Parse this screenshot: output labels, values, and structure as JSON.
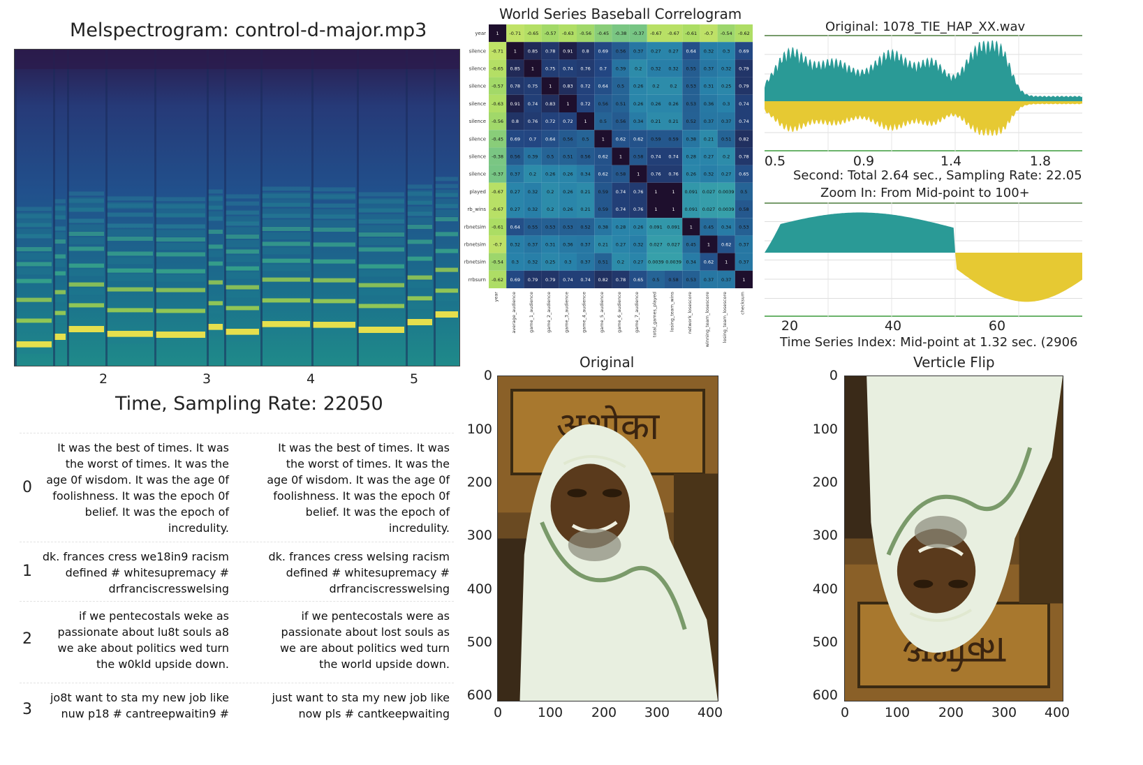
{
  "spectrogram": {
    "title": "Melspectrogram: control-d-major.mp3",
    "xlabel": "Time, Sampling Rate: 22050",
    "xticks": [
      "2",
      "3",
      "4",
      "5"
    ]
  },
  "correlogram": {
    "title": "World Series Baseball Correlogram",
    "row_labels": [
      "year",
      "silence",
      "silence",
      "silence",
      "silence",
      "silence",
      "silence",
      "silence",
      "silence",
      "played",
      "rb_wins",
      "rbnetsim",
      "rbnetsim",
      "rbnetsim",
      "rrbsurn"
    ],
    "col_labels": [
      "year",
      "average_audience",
      "game_1_audience",
      "game_2_audience",
      "game_3_audience",
      "game_4_audience",
      "game_5_audience",
      "game_6_audience",
      "game_7_audience",
      "total_games_played",
      "losing_team_wins",
      "network_losescore",
      "winning_team_losescore",
      "losing_team_losescore",
      "checksum"
    ],
    "matrix": [
      [
        "1",
        "-0.71",
        "-0.65",
        "-0.57",
        "-0.63",
        "-0.56",
        "-0.45",
        "-0.38",
        "-0.37",
        "-0.67",
        "-0.67",
        "-0.61",
        "-0.7",
        "-0.54",
        "-0.62"
      ],
      [
        "-0.71",
        "1",
        "0.85",
        "0.78",
        "0.91",
        "0.8",
        "0.69",
        "0.56",
        "0.37",
        "0.27",
        "0.27",
        "0.64",
        "0.32",
        "0.3",
        "0.69"
      ],
      [
        "-0.65",
        "0.85",
        "1",
        "0.75",
        "0.74",
        "0.76",
        "0.7",
        "0.39",
        "0.2",
        "0.32",
        "0.32",
        "0.55",
        "0.37",
        "0.32",
        "0.79"
      ],
      [
        "-0.57",
        "0.78",
        "0.75",
        "1",
        "0.83",
        "0.72",
        "0.64",
        "0.5",
        "0.26",
        "0.2",
        "0.2",
        "0.53",
        "0.31",
        "0.25",
        "0.79"
      ],
      [
        "-0.63",
        "0.91",
        "0.74",
        "0.83",
        "1",
        "0.72",
        "0.56",
        "0.51",
        "0.26",
        "0.26",
        "0.26",
        "0.53",
        "0.36",
        "0.3",
        "0.74"
      ],
      [
        "-0.56",
        "0.8",
        "0.76",
        "0.72",
        "0.72",
        "1",
        "0.5",
        "0.56",
        "0.34",
        "0.21",
        "0.21",
        "0.52",
        "0.37",
        "0.37",
        "0.74"
      ],
      [
        "-0.45",
        "0.69",
        "0.7",
        "0.64",
        "0.56",
        "0.5",
        "1",
        "0.62",
        "0.62",
        "0.59",
        "0.59",
        "0.38",
        "0.21",
        "0.51",
        "0.82"
      ],
      [
        "-0.38",
        "0.56",
        "0.39",
        "0.5",
        "0.51",
        "0.56",
        "0.62",
        "1",
        "0.58",
        "0.74",
        "0.74",
        "0.28",
        "0.27",
        "0.2",
        "0.78"
      ],
      [
        "-0.37",
        "0.37",
        "0.2",
        "0.26",
        "0.26",
        "0.34",
        "0.62",
        "0.58",
        "1",
        "0.76",
        "0.76",
        "0.26",
        "0.32",
        "0.27",
        "0.65"
      ],
      [
        "-0.67",
        "0.27",
        "0.32",
        "0.2",
        "0.26",
        "0.21",
        "0.59",
        "0.74",
        "0.76",
        "1",
        "1",
        "0.091",
        "0.027",
        "0.0039",
        "0.5"
      ],
      [
        "-0.67",
        "0.27",
        "0.32",
        "0.2",
        "0.26",
        "0.21",
        "0.59",
        "0.74",
        "0.76",
        "1",
        "1",
        "0.091",
        "0.027",
        "0.0039",
        "0.58"
      ],
      [
        "-0.61",
        "0.64",
        "0.55",
        "0.53",
        "0.53",
        "0.52",
        "0.38",
        "0.28",
        "0.26",
        "0.091",
        "0.091",
        "1",
        "0.45",
        "0.34",
        "0.53"
      ],
      [
        "-0.7",
        "0.32",
        "0.37",
        "0.31",
        "0.36",
        "0.37",
        "0.21",
        "0.27",
        "0.32",
        "0.027",
        "0.027",
        "0.45",
        "1",
        "0.62",
        "0.37"
      ],
      [
        "-0.54",
        "0.3",
        "0.32",
        "0.25",
        "0.3",
        "0.37",
        "0.51",
        "0.2",
        "0.27",
        "0.0039",
        "0.0039",
        "0.34",
        "0.62",
        "1",
        "0.37"
      ],
      [
        "-0.62",
        "0.69",
        "0.79",
        "0.79",
        "0.74",
        "0.74",
        "0.82",
        "0.78",
        "0.65",
        "0.5",
        "0.58",
        "0.53",
        "0.37",
        "0.37",
        "1"
      ]
    ]
  },
  "wave_original": {
    "title": "Original: 1078_TIE_HAP_XX.wav",
    "xticks": [
      "0.5",
      "0.9",
      "1.4",
      "1.8"
    ],
    "xlabel": "Second: Total 2.64 sec., Sampling Rate: 22.05",
    "colors": {
      "positive": "#2a9a96",
      "negative": "#e6c933"
    }
  },
  "wave_zoom": {
    "title": "Zoom In: From Mid-point to 100+",
    "xticks": [
      "20",
      "40",
      "60"
    ],
    "xlabel": "Time Series Index:  Mid-point at 1.32 sec. (2906"
  },
  "text_table": {
    "rows": [
      {
        "index": "0",
        "noisy": "It was the best of times. It was the worst of times. It was the age 0f wisdom. It was the age 0f foolishness. It was the epoch 0f belief. It was the epoch of incredulity.",
        "clean": "It was the best of times. It was the worst of times. It was the age 0f wisdom. It was the age 0f foolishness. It was the epoch 0f belief. It was the epoch of incredulity."
      },
      {
        "index": "1",
        "noisy": "dk. frances cress we18in9 racism defined # whitesupremacy # drfranciscresswelsing",
        "clean": "dk. frances cress welsing racism defined # whitesupremacy # drfranciscresswelsing"
      },
      {
        "index": "2",
        "noisy": "if we pentecostals weke as passionate about lu8t souls a8 we ake about politics wed turn the w0kld upside down.",
        "clean": "if we pentecostals were as passionate about lost souls as we are about politics wed turn the world upside down."
      },
      {
        "index": "3",
        "noisy": "jo8t want to sta my new job like nuw p18 # cantreepwaitin9 #",
        "clean": "just want to sta my new job like now pls # cantkeepwaiting"
      }
    ]
  },
  "image_original": {
    "title": "Original",
    "yticks": [
      "0",
      "100",
      "200",
      "300",
      "400",
      "500",
      "600"
    ],
    "xticks": [
      "0",
      "100",
      "200",
      "300",
      "400"
    ],
    "sign_text": "अशोका"
  },
  "image_flip": {
    "title": "Verticle Flip",
    "yticks": [
      "0",
      "100",
      "200",
      "300",
      "400",
      "500",
      "600"
    ],
    "xticks": [
      "0",
      "100",
      "200",
      "300",
      "400"
    ],
    "sign_text": "अशोका"
  }
}
